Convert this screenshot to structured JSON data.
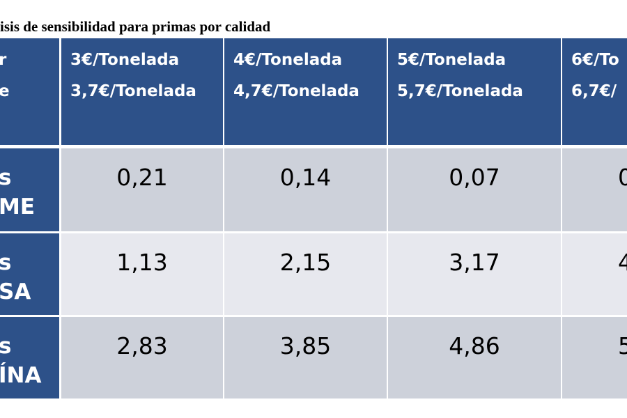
{
  "title": "isis de sensibilidad para primas por calidad",
  "table": {
    "header": [
      [
        "r",
        "e"
      ],
      [
        "3€/Tonelada",
        "3,7€/Tonelada"
      ],
      [
        "4€/Tonelada",
        "4,7€/Tonelada"
      ],
      [
        "5€/Tonelada",
        "5,7€/Tonelada"
      ],
      [
        "6€/To",
        "6,7€/"
      ]
    ],
    "rows": [
      {
        "label": [
          "s",
          "ME"
        ],
        "cells": [
          "0,21",
          "0,14",
          "0,07",
          "0"
        ]
      },
      {
        "label": [
          "s",
          "SA"
        ],
        "cells": [
          "1,13",
          "2,15",
          "3,17",
          "4"
        ]
      },
      {
        "label": [
          "s",
          "ÍNA"
        ],
        "cells": [
          "2,83",
          "3,85",
          "4,86",
          "5"
        ]
      }
    ]
  }
}
